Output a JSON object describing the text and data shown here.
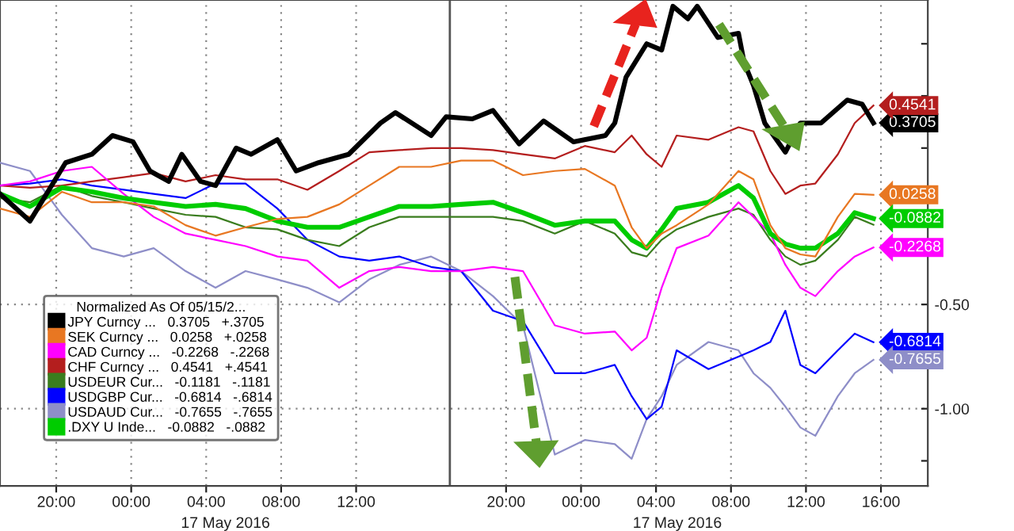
{
  "chart_data": {
    "type": "line",
    "x": [
      "2016-05-16T17:00",
      "2016-05-16T18:36",
      "2016-05-16T20:18",
      "2016-05-16T21:54",
      "2016-05-16T23:36",
      "2016-05-17T01:12",
      "2016-05-17T02:54",
      "2016-05-17T04:30",
      "2016-05-17T06:06",
      "2016-05-17T07:48",
      "2016-05-17T09:24",
      "2016-05-17T11:06",
      "2016-05-17T12:42",
      "2016-05-17T14:18",
      "2016-05-17T16:00",
      "2016-05-17T17:36",
      "2016-05-17T19:18",
      "2016-05-17T20:54",
      "2016-05-17T22:36",
      "2016-05-18T00:12",
      "2016-05-18T01:48",
      "2016-05-18T02:42",
      "2016-05-18T03:30",
      "2016-05-18T04:18",
      "2016-05-18T05:06",
      "2016-05-18T06:48",
      "2016-05-18T08:24",
      "2016-05-18T09:12",
      "2016-05-18T10:06",
      "2016-05-18T10:54",
      "2016-05-18T11:42",
      "2016-05-18T12:30",
      "2016-05-18T13:42",
      "2016-05-18T14:36",
      "2016-05-18T15:36"
    ],
    "series": [
      {
        "name": "JPY Curncy ...   0.3705   +.3705",
        "color": "#000000",
        "x": [
          "2016-05-16T17:00",
          "2016-05-16T18:36",
          "2016-05-16T20:30",
          "2016-05-16T21:54",
          "2016-05-16T23:00",
          "2016-05-17T00:06",
          "2016-05-17T01:00",
          "2016-05-17T02:00",
          "2016-05-17T02:42",
          "2016-05-17T03:42",
          "2016-05-17T04:30",
          "2016-05-17T05:36",
          "2016-05-17T06:24",
          "2016-05-17T07:48",
          "2016-05-17T08:48",
          "2016-05-17T10:00",
          "2016-05-17T11:36",
          "2016-05-17T13:18",
          "2016-05-17T14:06",
          "2016-05-17T16:00",
          "2016-05-17T16:48",
          "2016-05-17T18:12",
          "2016-05-17T19:18",
          "2016-05-17T20:42",
          "2016-05-17T22:00",
          "2016-05-17T23:36",
          "2016-05-18T01:18",
          "2016-05-18T01:48",
          "2016-05-18T02:24",
          "2016-05-18T03:30",
          "2016-05-18T04:18",
          "2016-05-18T04:54",
          "2016-05-18T05:42",
          "2016-05-18T06:12",
          "2016-05-18T07:18",
          "2016-05-18T08:24",
          "2016-05-18T08:42",
          "2016-05-18T09:12",
          "2016-05-18T09:48",
          "2016-05-18T10:54",
          "2016-05-18T11:42",
          "2016-05-18T12:48",
          "2016-05-18T14:12",
          "2016-05-18T15:00",
          "2016-05-18T15:36"
        ],
        "values": [
          0.03,
          -0.1,
          0.18,
          0.22,
          0.31,
          0.28,
          0.14,
          0.09,
          0.22,
          0.09,
          0.07,
          0.25,
          0.22,
          0.29,
          0.14,
          0.18,
          0.22,
          0.37,
          0.42,
          0.31,
          0.4,
          0.39,
          0.43,
          0.27,
          0.38,
          0.28,
          0.31,
          0.37,
          0.59,
          0.75,
          0.72,
          0.93,
          0.87,
          0.93,
          0.78,
          0.8,
          0.66,
          0.55,
          0.37,
          0.23,
          0.37,
          0.37,
          0.48,
          0.46,
          0.3705
        ],
        "value_labels": [
          null,
          null,
          null,
          null,
          null,
          null,
          null,
          null,
          null,
          null,
          null,
          null,
          null,
          null,
          null,
          null,
          null,
          null,
          null,
          null,
          null,
          null,
          null,
          null,
          null,
          null,
          null,
          null,
          null,
          null,
          null,
          null,
          null,
          null,
          null,
          null,
          null,
          null,
          null,
          null,
          null,
          null,
          null,
          null,
          "0.3705"
        ]
      },
      {
        "name": "SEK Curncy ...   0.0258   +.0258",
        "color": "#e87722",
        "values": [
          -0.04,
          -0.08,
          0.04,
          -0.01,
          -0.01,
          -0.03,
          -0.12,
          -0.17,
          -0.13,
          -0.09,
          -0.08,
          -0.02,
          0.07,
          0.16,
          0.16,
          0.19,
          0.19,
          0.12,
          0.14,
          0.15,
          0.07,
          -0.13,
          -0.23,
          -0.16,
          -0.12,
          -0.02,
          0.14,
          0.1,
          -0.12,
          -0.23,
          -0.26,
          -0.27,
          -0.08,
          0.03,
          0.0258
        ],
        "value_labels": [
          null,
          null,
          null,
          null,
          null,
          null,
          null,
          null,
          null,
          null,
          null,
          null,
          null,
          null,
          null,
          null,
          null,
          null,
          null,
          null,
          null,
          null,
          null,
          null,
          null,
          null,
          null,
          null,
          null,
          null,
          null,
          null,
          null,
          null,
          "0.0258"
        ]
      },
      {
        "name": "CAD Curncy ...   -0.2268   -.2268",
        "color": "#ff00ff",
        "values": [
          0.07,
          0.09,
          0.14,
          0.16,
          0.03,
          -0.08,
          -0.16,
          -0.19,
          -0.22,
          -0.27,
          -0.29,
          -0.42,
          -0.34,
          -0.32,
          -0.34,
          -0.34,
          -0.32,
          -0.34,
          -0.6,
          -0.64,
          -0.63,
          -0.72,
          -0.66,
          -0.42,
          -0.23,
          -0.17,
          -0.01,
          -0.08,
          -0.16,
          -0.31,
          -0.42,
          -0.46,
          -0.34,
          -0.27,
          -0.2268
        ],
        "value_labels": [
          null,
          null,
          null,
          null,
          null,
          null,
          null,
          null,
          null,
          null,
          null,
          null,
          null,
          null,
          null,
          null,
          null,
          null,
          null,
          null,
          null,
          null,
          null,
          null,
          null,
          null,
          null,
          null,
          null,
          null,
          null,
          null,
          null,
          null,
          "-0.2268"
        ]
      },
      {
        "name": "CHF Curncy ...   0.4541   +.4541",
        "color": "#b41e1e",
        "values": [
          0.07,
          0.06,
          0.07,
          0.09,
          0.11,
          0.13,
          0.09,
          0.12,
          0.1,
          0.1,
          0.05,
          0.14,
          0.23,
          0.24,
          0.25,
          0.25,
          0.24,
          0.22,
          0.2,
          0.26,
          0.23,
          0.31,
          0.22,
          0.16,
          0.31,
          0.29,
          0.35,
          0.33,
          0.14,
          0.03,
          0.07,
          0.08,
          0.22,
          0.37,
          0.4541
        ],
        "value_labels": [
          null,
          null,
          null,
          null,
          null,
          null,
          null,
          null,
          null,
          null,
          null,
          null,
          null,
          null,
          null,
          null,
          null,
          null,
          null,
          null,
          null,
          null,
          null,
          null,
          null,
          null,
          null,
          null,
          null,
          null,
          null,
          null,
          null,
          null,
          "0.4541"
        ]
      },
      {
        "name": "USDEUR Cur...   -0.1181   -.1181",
        "color": "#3a7d1e",
        "values": [
          0.01,
          -0.01,
          0.07,
          0.02,
          -0.01,
          -0.04,
          -0.07,
          -0.08,
          -0.13,
          -0.14,
          -0.19,
          -0.22,
          -0.13,
          -0.08,
          -0.08,
          -0.08,
          -0.08,
          -0.1,
          -0.16,
          -0.1,
          -0.16,
          -0.25,
          -0.27,
          -0.19,
          -0.14,
          -0.08,
          -0.04,
          -0.07,
          -0.19,
          -0.27,
          -0.31,
          -0.29,
          -0.19,
          -0.08,
          -0.1181
        ]
      },
      {
        "name": "USDGBP Cur...   -0.6814   -.6814",
        "color": "#0000ff",
        "values": [
          0.07,
          0.08,
          0.1,
          0.07,
          0.05,
          0.03,
          0.01,
          0.08,
          0.08,
          -0.04,
          -0.19,
          -0.27,
          -0.29,
          -0.27,
          -0.32,
          -0.34,
          -0.53,
          -0.58,
          -0.83,
          -0.83,
          -0.79,
          -0.94,
          -1.05,
          -0.99,
          -0.72,
          -0.81,
          -0.75,
          -0.72,
          -0.68,
          -0.53,
          -0.79,
          -0.83,
          -0.72,
          -0.64,
          -0.6814
        ],
        "value_labels": [
          null,
          null,
          null,
          null,
          null,
          null,
          null,
          null,
          null,
          null,
          null,
          null,
          null,
          null,
          null,
          null,
          null,
          null,
          null,
          null,
          null,
          null,
          null,
          null,
          null,
          null,
          null,
          null,
          null,
          null,
          null,
          null,
          null,
          null,
          "-0.6814"
        ]
      },
      {
        "name": "USDAUD Cur...   -0.7655   -.7655",
        "color": "#8e8ec8",
        "values": [
          0.18,
          0.14,
          -0.07,
          -0.23,
          -0.27,
          -0.23,
          -0.34,
          -0.42,
          -0.34,
          -0.38,
          -0.42,
          -0.49,
          -0.38,
          -0.31,
          -0.27,
          -0.34,
          -0.46,
          -0.6,
          -1.22,
          -1.15,
          -1.17,
          -1.24,
          -1.05,
          -0.94,
          -0.79,
          -0.68,
          -0.72,
          -0.83,
          -0.9,
          -0.99,
          -1.09,
          -1.13,
          -0.94,
          -0.83,
          -0.7655
        ],
        "value_labels": [
          null,
          null,
          null,
          null,
          null,
          null,
          null,
          null,
          null,
          null,
          null,
          null,
          null,
          null,
          null,
          null,
          null,
          null,
          null,
          null,
          null,
          null,
          null,
          null,
          null,
          null,
          null,
          null,
          null,
          null,
          null,
          null,
          null,
          null,
          "-0.7655"
        ]
      },
      {
        "name": ".DXY U Inde...   -0.0882   -.0882",
        "color": "#00cc00",
        "values": [
          0.03,
          -0.03,
          0.06,
          0.04,
          0.01,
          -0.01,
          -0.03,
          -0.02,
          -0.04,
          -0.1,
          -0.13,
          -0.13,
          -0.08,
          -0.03,
          -0.03,
          -0.02,
          -0.01,
          -0.06,
          -0.12,
          -0.1,
          -0.1,
          -0.19,
          -0.23,
          -0.14,
          -0.04,
          -0.01,
          0.07,
          0.01,
          -0.16,
          -0.21,
          -0.23,
          -0.23,
          -0.16,
          -0.06,
          -0.0882
        ],
        "value_labels": [
          null,
          null,
          null,
          null,
          null,
          null,
          null,
          null,
          null,
          null,
          null,
          null,
          null,
          null,
          null,
          null,
          null,
          null,
          null,
          null,
          null,
          null,
          null,
          null,
          null,
          null,
          null,
          null,
          null,
          null,
          null,
          null,
          null,
          null,
          "-0.0882"
        ]
      }
    ],
    "legend_title": "Normalized As Of 05/15/2...",
    "legend": "bottom left",
    "xlim": [
      "2016-05-16T17:00",
      "2016-05-18T18:30"
    ],
    "xticks": [
      {
        "value": "2016-05-16T20:00",
        "label": "20:00"
      },
      {
        "value": "2016-05-17T00:00",
        "label": "00:00"
      },
      {
        "value": "2016-05-17T04:00",
        "label": "04:00"
      },
      {
        "value": "2016-05-17T08:00",
        "label": "08:00"
      },
      {
        "value": "2016-05-17T12:00",
        "label": "12:00"
      },
      {
        "value": "2016-05-17T20:00",
        "label": "20:00"
      },
      {
        "value": "2016-05-18T00:00",
        "label": "00:00"
      },
      {
        "value": "2016-05-18T04:00",
        "label": "04:00"
      },
      {
        "value": "2016-05-18T08:00",
        "label": "08:00"
      },
      {
        "value": "2016-05-18T12:00",
        "label": "12:00"
      },
      {
        "value": "2016-05-18T16:00",
        "label": "16:00"
      }
    ],
    "ylim": [
      -1.37,
      0.96
    ],
    "yticks": [
      {
        "value": 0.75,
        "label": null
      },
      {
        "value": 0.5,
        "label": null
      },
      {
        "value": 0.25,
        "label": null
      },
      {
        "value": 0,
        "label": null
      },
      {
        "value": -0.25,
        "label": null
      },
      {
        "value": -0.5,
        "label": "-0.50"
      },
      {
        "value": -0.75,
        "label": null
      },
      {
        "value": -1.0,
        "label": "-1.00"
      },
      {
        "value": -1.25,
        "label": null
      }
    ],
    "ref_lines": [
      {
        "axis": "x",
        "value": "2016-05-17T17:00",
        "color": "#555555"
      }
    ],
    "annotations": [
      "17 May 2016",
      "17 May 2016"
    ],
    "grid": true,
    "line_style": "solid",
    "marker": "none"
  }
}
